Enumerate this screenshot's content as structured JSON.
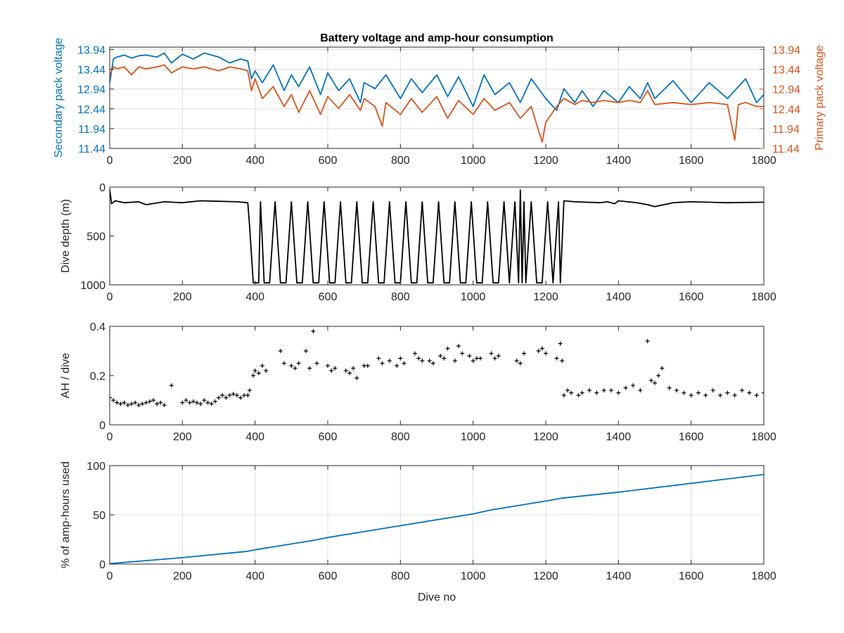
{
  "colors": {
    "blue": "#0072BD",
    "orange": "#D95319",
    "black": "#000000",
    "grid": "#dcdcdc",
    "axis": "#262626"
  },
  "chart_data": [
    {
      "type": "line",
      "title": "Battery voltage and amp-hour consumption",
      "xlabel": "",
      "ylabel": "Secondary pack voltage",
      "ylabel_right": "Primary pack voltage",
      "xlim": [
        0,
        1800
      ],
      "ylim": [
        11.44,
        14.0
      ],
      "xticks": [
        "0",
        "200",
        "400",
        "600",
        "800",
        "1000",
        "1200",
        "1400",
        "1600",
        "1800"
      ],
      "yticks": [
        "13.94",
        "13.44",
        "12.94",
        "12.44",
        "11.94",
        "11.44"
      ],
      "ytick_values": [
        13.94,
        13.44,
        12.94,
        12.44,
        11.94,
        11.44
      ],
      "yticks_right": [
        "13.94",
        "13.44",
        "12.94",
        "12.44",
        "11.94",
        "11.44"
      ],
      "grid": true,
      "series": [
        {
          "color": "#0072BD",
          "x": [
            0,
            10,
            20,
            40,
            60,
            80,
            100,
            130,
            150,
            170,
            200,
            230,
            260,
            300,
            330,
            360,
            380,
            390,
            400,
            420,
            450,
            480,
            500,
            520,
            550,
            580,
            600,
            630,
            660,
            690,
            700,
            730,
            760,
            800,
            830,
            860,
            900,
            930,
            960,
            1000,
            1030,
            1060,
            1100,
            1130,
            1160,
            1200,
            1230,
            1250,
            1280,
            1300,
            1330,
            1360,
            1400,
            1430,
            1460,
            1480,
            1500,
            1550,
            1600,
            1650,
            1700,
            1750,
            1780,
            1800
          ],
          "y": [
            13.1,
            13.7,
            13.75,
            13.8,
            13.72,
            13.78,
            13.8,
            13.75,
            13.85,
            13.6,
            13.82,
            13.7,
            13.85,
            13.75,
            13.6,
            13.7,
            13.65,
            13.2,
            13.4,
            13.1,
            13.55,
            12.9,
            13.3,
            13.0,
            13.5,
            12.8,
            13.35,
            12.9,
            13.2,
            12.6,
            13.1,
            12.95,
            13.3,
            12.7,
            13.2,
            12.85,
            13.3,
            12.75,
            13.25,
            12.5,
            13.3,
            12.8,
            13.1,
            12.6,
            13.2,
            12.7,
            12.4,
            12.95,
            12.6,
            12.9,
            12.5,
            12.9,
            12.6,
            13.0,
            12.7,
            13.1,
            12.7,
            13.15,
            12.6,
            13.1,
            12.7,
            13.2,
            12.6,
            12.8
          ]
        },
        {
          "color": "#D95319",
          "x": [
            0,
            10,
            20,
            40,
            60,
            80,
            100,
            130,
            150,
            170,
            200,
            230,
            260,
            300,
            330,
            360,
            380,
            390,
            400,
            420,
            450,
            480,
            500,
            520,
            550,
            580,
            600,
            630,
            660,
            690,
            700,
            730,
            750,
            760,
            800,
            830,
            860,
            900,
            930,
            960,
            1000,
            1030,
            1060,
            1100,
            1130,
            1160,
            1190,
            1200,
            1230,
            1250,
            1280,
            1300,
            1330,
            1360,
            1400,
            1430,
            1460,
            1480,
            1500,
            1550,
            1600,
            1650,
            1700,
            1720,
            1730,
            1750,
            1780,
            1800
          ],
          "y": [
            13.3,
            13.5,
            13.45,
            13.5,
            13.3,
            13.5,
            13.45,
            13.5,
            13.55,
            13.35,
            13.5,
            13.45,
            13.5,
            13.4,
            13.5,
            13.45,
            13.4,
            12.9,
            13.2,
            12.7,
            13.0,
            12.5,
            12.8,
            12.35,
            12.9,
            12.3,
            12.75,
            12.45,
            12.8,
            12.4,
            12.7,
            12.5,
            12.0,
            12.6,
            12.3,
            12.7,
            12.35,
            12.75,
            12.2,
            12.65,
            12.3,
            12.7,
            12.4,
            12.6,
            12.2,
            12.5,
            11.6,
            12.1,
            12.5,
            12.7,
            12.55,
            12.65,
            12.6,
            12.65,
            12.6,
            12.65,
            12.6,
            12.9,
            12.55,
            12.6,
            12.55,
            12.6,
            12.55,
            11.65,
            12.55,
            12.6,
            12.5,
            12.5
          ]
        }
      ]
    },
    {
      "type": "line",
      "title": "",
      "xlabel": "",
      "ylabel": "Dive depth (m)",
      "xlim": [
        0,
        1800
      ],
      "ylim": [
        0,
        1000
      ],
      "y_reversed": true,
      "xticks": [
        "0",
        "200",
        "400",
        "600",
        "800",
        "1000",
        "1200",
        "1400",
        "1600",
        "1800"
      ],
      "yticks": [
        "0",
        "500",
        "1000"
      ],
      "ytick_values": [
        0,
        500,
        1000
      ],
      "grid": false,
      "series": [
        {
          "color": "#000000",
          "x": [
            0,
            5,
            15,
            40,
            80,
            100,
            150,
            200,
            250,
            300,
            350,
            380,
            385,
            395,
            410,
            415,
            425,
            440,
            455,
            470,
            485,
            500,
            515,
            530,
            545,
            560,
            575,
            590,
            605,
            620,
            635,
            650,
            665,
            680,
            695,
            710,
            725,
            740,
            755,
            770,
            785,
            800,
            815,
            830,
            845,
            860,
            875,
            890,
            905,
            920,
            935,
            950,
            965,
            980,
            995,
            1010,
            1025,
            1040,
            1055,
            1070,
            1085,
            1100,
            1115,
            1125,
            1130,
            1135,
            1140,
            1145,
            1160,
            1175,
            1190,
            1205,
            1220,
            1235,
            1240,
            1250,
            1280,
            1350,
            1370,
            1390,
            1400,
            1450,
            1480,
            1500,
            1550,
            1600,
            1700,
            1800
          ],
          "y": [
            20,
            170,
            140,
            160,
            150,
            180,
            150,
            160,
            140,
            145,
            150,
            160,
            400,
            980,
            980,
            150,
            980,
            980,
            150,
            980,
            980,
            150,
            980,
            980,
            150,
            980,
            980,
            150,
            980,
            980,
            150,
            980,
            980,
            150,
            980,
            980,
            150,
            980,
            980,
            150,
            980,
            980,
            150,
            980,
            980,
            150,
            980,
            980,
            150,
            980,
            980,
            150,
            980,
            980,
            150,
            980,
            980,
            150,
            980,
            980,
            150,
            980,
            150,
            980,
            30,
            980,
            150,
            980,
            150,
            980,
            980,
            150,
            980,
            150,
            980,
            140,
            150,
            160,
            150,
            170,
            140,
            160,
            180,
            200,
            160,
            150,
            160,
            155
          ]
        }
      ]
    },
    {
      "type": "scatter",
      "title": "",
      "xlabel": "",
      "ylabel": "AH / dive",
      "xlim": [
        0,
        1800
      ],
      "ylim": [
        0,
        0.4
      ],
      "xticks": [
        "0",
        "200",
        "400",
        "600",
        "800",
        "1000",
        "1200",
        "1400",
        "1600",
        "1800"
      ],
      "yticks": [
        "0",
        "0.2",
        "0.4"
      ],
      "ytick_values": [
        0,
        0.2,
        0.4
      ],
      "grid": false,
      "series": [
        {
          "color": "#000000",
          "x": [
            0,
            10,
            20,
            30,
            40,
            50,
            60,
            70,
            80,
            90,
            100,
            110,
            120,
            130,
            140,
            150,
            170,
            200,
            210,
            220,
            230,
            240,
            250,
            260,
            270,
            280,
            290,
            300,
            310,
            320,
            330,
            340,
            350,
            360,
            370,
            380,
            385,
            395,
            400,
            410,
            420,
            430,
            470,
            480,
            500,
            510,
            520,
            540,
            550,
            560,
            570,
            600,
            610,
            620,
            650,
            660,
            670,
            680,
            700,
            710,
            740,
            750,
            770,
            790,
            800,
            810,
            840,
            850,
            860,
            880,
            890,
            910,
            920,
            930,
            950,
            960,
            970,
            990,
            1000,
            1010,
            1020,
            1050,
            1060,
            1070,
            1120,
            1130,
            1140,
            1180,
            1190,
            1200,
            1230,
            1240,
            1245,
            1250,
            1260,
            1270,
            1290,
            1300,
            1320,
            1340,
            1360,
            1380,
            1400,
            1420,
            1440,
            1460,
            1480,
            1490,
            1500,
            1510,
            1520,
            1540,
            1560,
            1580,
            1600,
            1620,
            1640,
            1660,
            1680,
            1700,
            1720,
            1740,
            1760,
            1780,
            1800
          ],
          "y": [
            0.11,
            0.1,
            0.09,
            0.085,
            0.09,
            0.08,
            0.085,
            0.09,
            0.08,
            0.085,
            0.09,
            0.095,
            0.1,
            0.085,
            0.09,
            0.08,
            0.16,
            0.09,
            0.1,
            0.09,
            0.095,
            0.09,
            0.085,
            0.1,
            0.09,
            0.085,
            0.095,
            0.11,
            0.12,
            0.11,
            0.12,
            0.125,
            0.12,
            0.11,
            0.12,
            0.12,
            0.14,
            0.2,
            0.22,
            0.21,
            0.24,
            0.22,
            0.3,
            0.25,
            0.24,
            0.23,
            0.25,
            0.3,
            0.23,
            0.38,
            0.25,
            0.24,
            0.22,
            0.23,
            0.22,
            0.21,
            0.23,
            0.19,
            0.24,
            0.24,
            0.27,
            0.25,
            0.26,
            0.24,
            0.27,
            0.25,
            0.29,
            0.27,
            0.26,
            0.26,
            0.25,
            0.28,
            0.27,
            0.31,
            0.26,
            0.32,
            0.29,
            0.28,
            0.26,
            0.27,
            0.27,
            0.29,
            0.27,
            0.28,
            0.26,
            0.25,
            0.29,
            0.3,
            0.31,
            0.29,
            0.27,
            0.33,
            0.26,
            0.12,
            0.14,
            0.13,
            0.12,
            0.13,
            0.14,
            0.13,
            0.14,
            0.14,
            0.13,
            0.15,
            0.16,
            0.14,
            0.34,
            0.18,
            0.17,
            0.2,
            0.23,
            0.15,
            0.14,
            0.13,
            0.12,
            0.13,
            0.12,
            0.14,
            0.12,
            0.13,
            0.12,
            0.14,
            0.13,
            0.12,
            0.13
          ]
        }
      ]
    },
    {
      "type": "line",
      "title": "",
      "xlabel": "Dive no",
      "ylabel": "% of amp-hours used",
      "xlim": [
        0,
        1800
      ],
      "ylim": [
        0,
        100
      ],
      "xticks": [
        "0",
        "200",
        "400",
        "600",
        "800",
        "1000",
        "1200",
        "1400",
        "1600",
        "1800"
      ],
      "yticks": [
        "0",
        "50",
        "100"
      ],
      "ytick_values": [
        0,
        50,
        100
      ],
      "grid": true,
      "series": [
        {
          "color": "#0072BD",
          "x": [
            0,
            200,
            380,
            400,
            560,
            600,
            800,
            1000,
            1050,
            1200,
            1245,
            1400,
            1600,
            1800
          ],
          "y": [
            0.5,
            6.5,
            13,
            14.5,
            24,
            27,
            39,
            51,
            55,
            64,
            67,
            73,
            82,
            91
          ]
        }
      ]
    }
  ]
}
